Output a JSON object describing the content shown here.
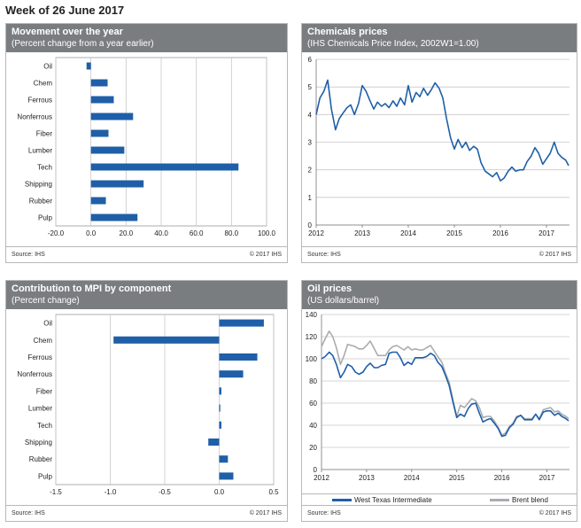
{
  "page": {
    "title": "Week of 26 June 2017"
  },
  "panels": {
    "movement": {
      "title": "Movement  over the year",
      "subtitle": "(Percent change from a year earlier)",
      "source": "Source: IHS",
      "copyright": "© 2017 IHS"
    },
    "chemicals": {
      "title": "Chemicals prices",
      "subtitle": "(IHS Chemicals Price Index, 2002W1=1.00)",
      "source": "Source: IHS",
      "copyright": "© 2017 IHS"
    },
    "contribution": {
      "title": "Contribution  to MPI by component",
      "subtitle": "(Percent change)",
      "source": "Source: IHS",
      "copyright": "© 2017 IHS"
    },
    "oil": {
      "title": "Oil  prices",
      "subtitle": "(US dollars/barrel)",
      "source": "Source: IHS",
      "copyright": "© 2017 IHS",
      "legend": [
        "West Texas Intermediate",
        "Brent blend"
      ]
    }
  },
  "colors": {
    "bar": "#1f5fa8",
    "wti": "#1f5fa8",
    "brent": "#a9acb0",
    "header": "#7a7d80",
    "grid": "#c8c8c8"
  },
  "chart_data": [
    {
      "type": "bar",
      "orientation": "horizontal",
      "title": "Movement  over the year",
      "categories": [
        "Oil",
        "Chem",
        "Ferrous",
        "Nonferrous",
        "Fiber",
        "Lumber",
        "Tech",
        "Shipping",
        "Rubber",
        "Pulp"
      ],
      "values": [
        -2.5,
        9.5,
        13,
        24,
        10,
        19,
        84,
        30,
        8.5,
        26.5
      ],
      "xlim": [
        -20,
        100
      ],
      "xticks": [
        "-20.0",
        "0.0",
        "20.0",
        "40.0",
        "60.0",
        "80.0",
        "100.0"
      ],
      "grid": "vertical"
    },
    {
      "type": "line",
      "title": "Chemicals prices",
      "x": [
        2012.0,
        2012.08,
        2012.17,
        2012.25,
        2012.33,
        2012.42,
        2012.5,
        2012.58,
        2012.67,
        2012.75,
        2012.83,
        2012.92,
        2013.0,
        2013.08,
        2013.17,
        2013.25,
        2013.33,
        2013.42,
        2013.5,
        2013.58,
        2013.67,
        2013.75,
        2013.83,
        2013.92,
        2014.0,
        2014.08,
        2014.17,
        2014.25,
        2014.33,
        2014.42,
        2014.5,
        2014.58,
        2014.67,
        2014.75,
        2014.83,
        2014.92,
        2015.0,
        2015.08,
        2015.17,
        2015.25,
        2015.33,
        2015.42,
        2015.5,
        2015.58,
        2015.67,
        2015.75,
        2015.83,
        2015.92,
        2016.0,
        2016.08,
        2016.17,
        2016.25,
        2016.33,
        2016.42,
        2016.5,
        2016.58,
        2016.67,
        2016.75,
        2016.83,
        2016.92,
        2017.0,
        2017.08,
        2017.17,
        2017.25,
        2017.33,
        2017.42,
        2017.48
      ],
      "values": [
        4.0,
        4.6,
        4.85,
        5.25,
        4.2,
        3.45,
        3.85,
        4.05,
        4.25,
        4.35,
        4.0,
        4.4,
        5.05,
        4.85,
        4.5,
        4.2,
        4.45,
        4.3,
        4.4,
        4.25,
        4.5,
        4.3,
        4.6,
        4.35,
        5.05,
        4.45,
        4.8,
        4.65,
        4.95,
        4.7,
        4.9,
        5.15,
        4.95,
        4.6,
        3.85,
        3.15,
        2.75,
        3.1,
        2.8,
        3.0,
        2.7,
        2.85,
        2.75,
        2.25,
        1.95,
        1.85,
        1.75,
        1.9,
        1.6,
        1.7,
        1.95,
        2.1,
        1.95,
        2.0,
        2.0,
        2.3,
        2.5,
        2.8,
        2.6,
        2.2,
        2.4,
        2.6,
        3.0,
        2.6,
        2.45,
        2.35,
        2.15
      ],
      "ylim": [
        0,
        6
      ],
      "yticks": [
        "0",
        "1",
        "2",
        "3",
        "4",
        "5",
        "6"
      ],
      "xticks": [
        "2012",
        "2013",
        "2014",
        "2015",
        "2016",
        "2017"
      ],
      "grid": "horizontal"
    },
    {
      "type": "bar",
      "orientation": "horizontal",
      "title": "Contribution  to MPI by component",
      "categories": [
        "Oil",
        "Chem",
        "Ferrous",
        "Nonferrous",
        "Fiber",
        "Lumber",
        "Tech",
        "Shipping",
        "Rubber",
        "Pulp"
      ],
      "values": [
        0.41,
        -0.97,
        0.35,
        0.22,
        0.02,
        0.01,
        0.02,
        -0.1,
        0.08,
        0.13
      ],
      "xlim": [
        -1.5,
        0.5
      ],
      "xticks": [
        "-1.5",
        "-1.0",
        "-0.5",
        "0.0",
        "0.5"
      ],
      "grid": "vertical"
    },
    {
      "type": "line",
      "title": "Oil  prices",
      "x": [
        2012.0,
        2012.08,
        2012.17,
        2012.25,
        2012.33,
        2012.42,
        2012.5,
        2012.58,
        2012.67,
        2012.75,
        2012.83,
        2012.92,
        2013.0,
        2013.08,
        2013.17,
        2013.25,
        2013.33,
        2013.42,
        2013.5,
        2013.58,
        2013.67,
        2013.75,
        2013.83,
        2013.92,
        2014.0,
        2014.08,
        2014.17,
        2014.25,
        2014.33,
        2014.42,
        2014.5,
        2014.58,
        2014.67,
        2014.75,
        2014.83,
        2014.92,
        2015.0,
        2015.08,
        2015.17,
        2015.25,
        2015.33,
        2015.42,
        2015.5,
        2015.58,
        2015.67,
        2015.75,
        2015.83,
        2015.92,
        2016.0,
        2016.08,
        2016.17,
        2016.25,
        2016.33,
        2016.42,
        2016.5,
        2016.58,
        2016.67,
        2016.75,
        2016.83,
        2016.92,
        2017.0,
        2017.08,
        2017.17,
        2017.25,
        2017.33,
        2017.42,
        2017.48
      ],
      "series": [
        {
          "name": "West Texas Intermediate",
          "values": [
            100,
            102,
            106,
            103,
            95,
            83,
            88,
            95,
            93,
            88,
            86,
            88,
            93,
            96,
            92,
            92,
            94,
            95,
            105,
            106,
            106,
            101,
            94,
            97,
            95,
            101,
            101,
            101,
            102,
            105,
            103,
            97,
            93,
            85,
            76,
            60,
            47,
            50,
            48,
            55,
            59,
            60,
            51,
            43,
            45,
            46,
            42,
            37,
            30,
            31,
            38,
            41,
            47,
            49,
            45,
            45,
            45,
            50,
            45,
            52,
            53,
            53,
            49,
            51,
            48,
            46,
            44
          ]
        },
        {
          "name": "Brent blend",
          "values": [
            111,
            118,
            125,
            120,
            110,
            95,
            103,
            113,
            112,
            111,
            109,
            109,
            112,
            116,
            109,
            103,
            103,
            103,
            108,
            111,
            112,
            110,
            108,
            111,
            108,
            109,
            108,
            108,
            110,
            112,
            107,
            102,
            97,
            87,
            79,
            62,
            48,
            58,
            56,
            60,
            64,
            62,
            56,
            47,
            48,
            48,
            44,
            38,
            31,
            33,
            39,
            42,
            48,
            49,
            46,
            46,
            46,
            50,
            46,
            54,
            55,
            56,
            52,
            53,
            50,
            48,
            46
          ]
        }
      ],
      "ylim": [
        0,
        140
      ],
      "yticks": [
        "0",
        "20",
        "40",
        "60",
        "80",
        "100",
        "120",
        "140"
      ],
      "xticks": [
        "2012",
        "2013",
        "2014",
        "2015",
        "2016",
        "2017"
      ],
      "grid": "horizontal",
      "legend": "bottom"
    }
  ]
}
